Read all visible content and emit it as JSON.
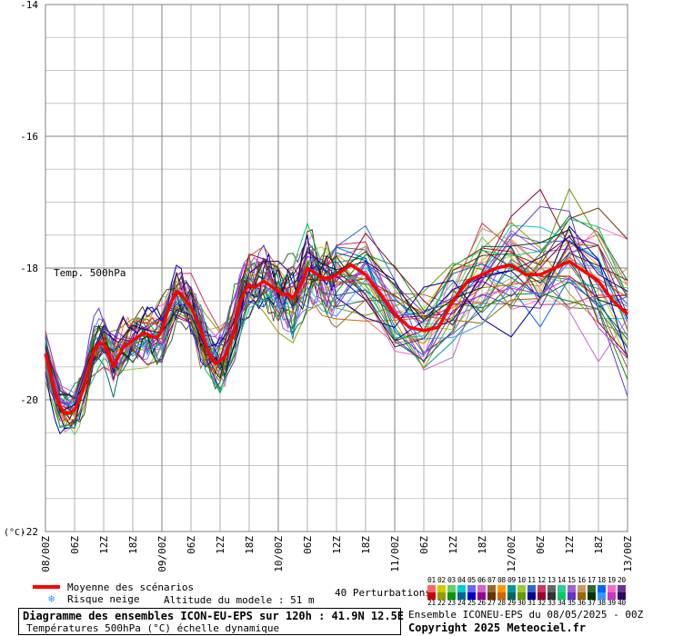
{
  "chart_data": {
    "type": "line",
    "title": "Diagramme des ensembles ICON-EU-EPS sur 120h : 41.9N 12.5E",
    "subtitle": "Températures 500hPa (°C) échelle dynamique",
    "series_label": "Temp. 500hPa",
    "ylabel": "(°C)",
    "ylim": [
      -22,
      -14
    ],
    "yticks": [
      "-14",
      "-16",
      "-18",
      "-20",
      "-22"
    ],
    "grid": true,
    "x_range_hours": [
      0,
      120
    ],
    "xticks": [
      "08/00Z",
      "06Z",
      "12Z",
      "18Z",
      "09/00Z",
      "06Z",
      "12Z",
      "18Z",
      "10/00Z",
      "06Z",
      "12Z",
      "18Z",
      "11/00Z",
      "06Z",
      "12Z",
      "18Z",
      "12/00Z",
      "06Z",
      "12Z",
      "18Z",
      "13/00Z"
    ],
    "mean": {
      "name": "Moyenne des scénarios",
      "color": "#ff0000",
      "x": [
        0,
        1,
        2,
        3,
        4,
        5,
        6,
        7,
        8,
        9,
        10,
        11,
        12,
        13,
        14,
        15,
        16,
        17,
        18,
        19,
        20,
        21,
        22,
        23,
        24,
        25,
        26,
        27,
        28,
        29,
        30,
        31,
        32,
        33,
        34,
        35,
        36,
        37,
        38,
        39,
        40,
        41,
        42,
        43,
        44,
        45,
        46,
        47,
        48,
        49,
        50,
        51,
        52,
        53,
        54,
        55,
        56,
        57,
        58,
        59,
        60,
        63,
        66,
        69,
        72,
        75,
        78,
        81,
        84,
        87,
        90,
        93,
        96,
        99,
        102,
        105,
        108,
        111,
        114,
        117,
        120
      ],
      "y": [
        -19.3,
        -19.6,
        -19.9,
        -20.1,
        -20.2,
        -20.2,
        -20.15,
        -20.0,
        -19.8,
        -19.5,
        -19.25,
        -19.15,
        -19.15,
        -19.3,
        -19.5,
        -19.35,
        -19.2,
        -19.15,
        -19.1,
        -19.05,
        -19.0,
        -19.0,
        -19.05,
        -19.05,
        -18.95,
        -18.7,
        -18.5,
        -18.35,
        -18.4,
        -18.5,
        -18.6,
        -18.75,
        -18.95,
        -19.15,
        -19.35,
        -19.45,
        -19.4,
        -19.35,
        -19.15,
        -18.9,
        -18.55,
        -18.35,
        -18.25,
        -18.3,
        -18.25,
        -18.2,
        -18.25,
        -18.3,
        -18.35,
        -18.4,
        -18.4,
        -18.45,
        -18.35,
        -18.2,
        -18.0,
        -18.05,
        -18.1,
        -18.15,
        -18.15,
        -18.15,
        -18.1,
        -17.95,
        -18.1,
        -18.4,
        -18.7,
        -18.9,
        -18.95,
        -18.9,
        -18.5,
        -18.2,
        -18.1,
        -18.0,
        -17.95,
        -18.1,
        -18.1,
        -18.0,
        -17.9,
        -18.05,
        -18.2,
        -18.5,
        -18.7
      ]
    },
    "perturbations": {
      "label": "40 Perturbations",
      "count": 40,
      "colors": [
        "#ff6666",
        "#cccc00",
        "#66cc66",
        "#00cccc",
        "#6666ff",
        "#cc66cc",
        "#996633",
        "#ff9900",
        "#009999",
        "#99cc33",
        "#3366cc",
        "#cc3366",
        "#666666",
        "#33cc99",
        "#9966cc",
        "#cc9966",
        "#336633",
        "#0066ff",
        "#ff66cc",
        "#663399",
        "#cc0000",
        "#999900",
        "#009900",
        "#006699",
        "#0000cc",
        "#990099",
        "#663300",
        "#cc6600",
        "#006666",
        "#669900",
        "#000099",
        "#990033",
        "#333333",
        "#00cc66",
        "#6633cc",
        "#996600",
        "#003300",
        "#3399ff",
        "#cc33cc",
        "#330066"
      ]
    }
  },
  "legend": {
    "mean_label": "Moyenne des scénarios",
    "snow_label": "Risque neige",
    "snow_icon": "snowflake-icon",
    "altitude_label": "Altitude du modele : 51 m",
    "perturbations_label": "40 Perturbations",
    "numbers_top": [
      "01",
      "02",
      "03",
      "04",
      "05",
      "06",
      "07",
      "08",
      "09",
      "10",
      "11",
      "12",
      "13",
      "14",
      "15",
      "16",
      "17",
      "18",
      "19",
      "20"
    ],
    "numbers_bottom": [
      "21",
      "22",
      "23",
      "24",
      "25",
      "26",
      "27",
      "28",
      "29",
      "30",
      "31",
      "32",
      "33",
      "34",
      "35",
      "36",
      "37",
      "38",
      "39",
      "40"
    ]
  },
  "footer": {
    "ensemble_info": "Ensemble ICONEU-EPS du 08/05/2025 - 00Z",
    "copyright": "Copyright 2025 Meteociel.fr"
  },
  "colors": {
    "background": "#ffffff",
    "grid": "#b0b0b0",
    "grid_major": "#808080",
    "mean": "#ff0000"
  }
}
